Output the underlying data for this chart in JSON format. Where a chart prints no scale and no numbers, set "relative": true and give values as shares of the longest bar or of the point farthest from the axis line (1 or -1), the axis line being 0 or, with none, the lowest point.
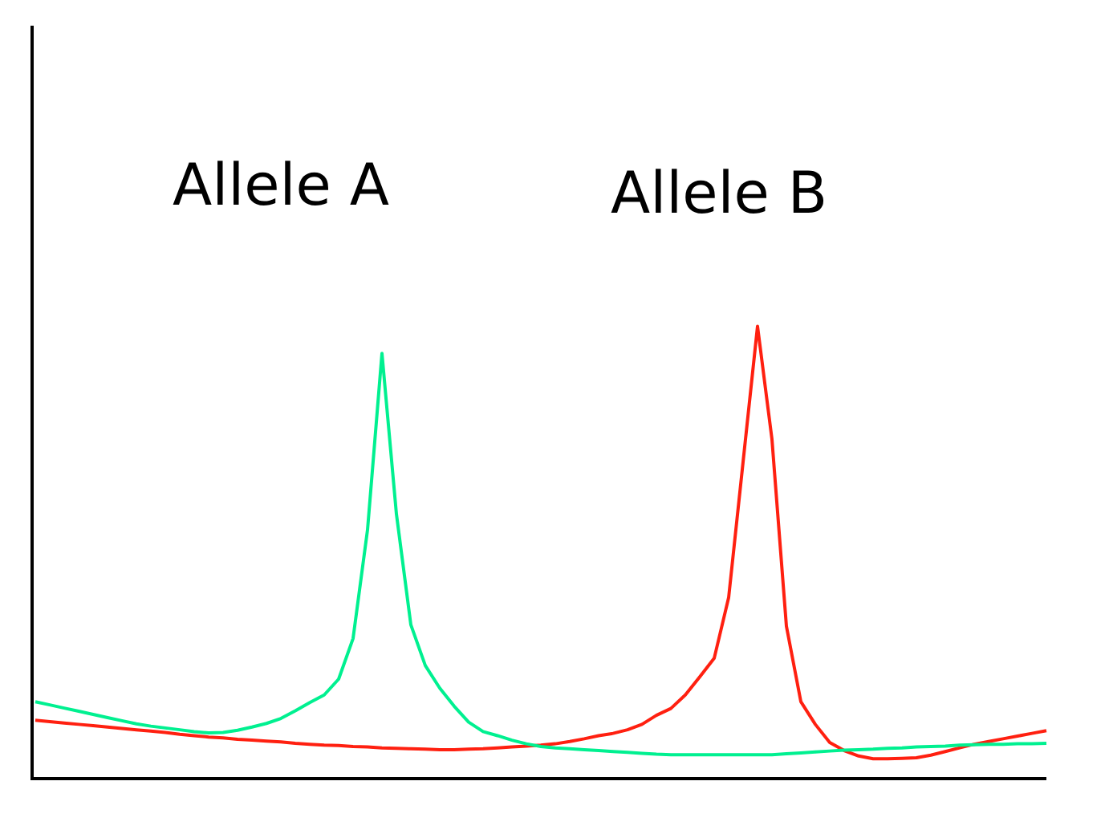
{
  "chart_data": {
    "type": "line",
    "relative": true,
    "legend": false,
    "marker": "none",
    "line_style": "solid",
    "categories": [
      null,
      null,
      null,
      null,
      null,
      null,
      null,
      null,
      null,
      null,
      null,
      null,
      null,
      null,
      null,
      null,
      null,
      null,
      null,
      null,
      null,
      null,
      null,
      null,
      null,
      null,
      null,
      null,
      null,
      null,
      null,
      null,
      null,
      null,
      null,
      null,
      null,
      null,
      null,
      null,
      null,
      null,
      null,
      null,
      null,
      null,
      null,
      null,
      null,
      null,
      null,
      null,
      null,
      null,
      null,
      null,
      null,
      null,
      null,
      null,
      null,
      null,
      null,
      null,
      null,
      null,
      null,
      null,
      null,
      null,
      null
    ],
    "series": [
      {
        "name": "Allele A",
        "color": "#00f090",
        "values": [
          0.17,
          0.163,
          0.156,
          0.149,
          0.142,
          0.135,
          0.128,
          0.121,
          0.116,
          0.112,
          0.108,
          0.104,
          0.101,
          0.102,
          0.107,
          0.114,
          0.122,
          0.133,
          0.15,
          0.168,
          0.185,
          0.22,
          0.31,
          0.55,
          0.94,
          0.585,
          0.34,
          0.25,
          0.2,
          0.16,
          0.125,
          0.104,
          0.095,
          0.085,
          0.077,
          0.071,
          0.068,
          0.066,
          0.064,
          0.062,
          0.06,
          0.058,
          0.056,
          0.054,
          0.053,
          0.053,
          0.053,
          0.053,
          0.053,
          0.053,
          0.053,
          0.053,
          0.055,
          0.057,
          0.059,
          0.061,
          0.063,
          0.064,
          0.065,
          0.067,
          0.068,
          0.07,
          0.071,
          0.072,
          0.074,
          0.075,
          0.076,
          0.076,
          0.077,
          0.077,
          0.078
        ]
      },
      {
        "name": "Allele B",
        "color": "#ff2010",
        "values": [
          0.129,
          0.126,
          0.123,
          0.12,
          0.117,
          0.114,
          0.111,
          0.108,
          0.105,
          0.102,
          0.098,
          0.095,
          0.092,
          0.09,
          0.087,
          0.085,
          0.083,
          0.081,
          0.078,
          0.076,
          0.074,
          0.073,
          0.071,
          0.07,
          0.068,
          0.067,
          0.066,
          0.065,
          0.064,
          0.064,
          0.065,
          0.066,
          0.068,
          0.07,
          0.072,
          0.074,
          0.077,
          0.082,
          0.088,
          0.095,
          0.1,
          0.108,
          0.12,
          0.14,
          0.155,
          0.185,
          0.225,
          0.266,
          0.4,
          0.7,
          1,
          0.75,
          0.337,
          0.17,
          0.12,
          0.08,
          0.062,
          0.05,
          0.044,
          0.044,
          0.045,
          0.046,
          0.052,
          0.06,
          0.068,
          0.076,
          0.082,
          0.088,
          0.094,
          0.1,
          0.106
        ]
      }
    ]
  }
}
